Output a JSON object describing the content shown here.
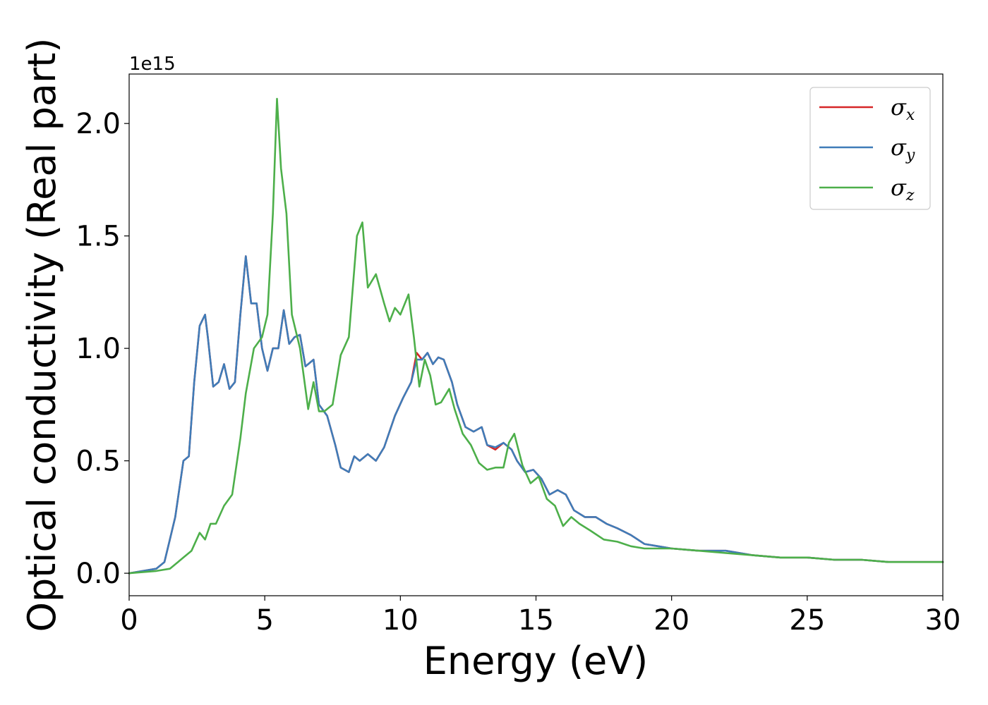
{
  "chart_data": {
    "type": "line",
    "xlabel": "Energy (eV)",
    "ylabel": "Optical conductivity (Real part)",
    "y_offset_text": "1e15",
    "xlim": [
      0,
      30
    ],
    "ylim": [
      -0.1,
      2.22
    ],
    "xticks": [
      0,
      5,
      10,
      15,
      20,
      25,
      30
    ],
    "xtick_labels": [
      "0",
      "5",
      "10",
      "15",
      "20",
      "25",
      "30"
    ],
    "yticks": [
      0.0,
      0.5,
      1.0,
      1.5,
      2.0
    ],
    "ytick_labels": [
      "0.0",
      "0.5",
      "1.0",
      "1.5",
      "2.0"
    ],
    "grid": false,
    "legend_position": "top-right",
    "series": [
      {
        "name": "σx",
        "legend_base": "σ",
        "legend_sub": "x",
        "color": "#d62728",
        "x": [
          0,
          1,
          1.3,
          1.5,
          1.7,
          2.0,
          2.2,
          2.4,
          2.6,
          2.8,
          2.9,
          3.1,
          3.3,
          3.5,
          3.7,
          3.9,
          4.1,
          4.3,
          4.5,
          4.7,
          4.9,
          5.1,
          5.3,
          5.5,
          5.7,
          5.9,
          6.1,
          6.3,
          6.5,
          6.8,
          7.0,
          7.3,
          7.6,
          7.8,
          8.1,
          8.3,
          8.5,
          8.8,
          9.1,
          9.4,
          9.8,
          10.1,
          10.4,
          10.6,
          10.8,
          11.0,
          11.2,
          11.4,
          11.6,
          11.9,
          12.1,
          12.4,
          12.7,
          13.0,
          13.2,
          13.5,
          13.8,
          14.1,
          14.3,
          14.6,
          14.9,
          15.2,
          15.5,
          15.8,
          16.1,
          16.4,
          16.8,
          17.2,
          17.6,
          18.0,
          18.5,
          19.0,
          19.5,
          20.0,
          21.0,
          22.0,
          23.0,
          24.0,
          25.0,
          26.0,
          27.0,
          28.0,
          29.0,
          30.0
        ],
        "y": [
          0.0,
          0.02,
          0.05,
          0.15,
          0.25,
          0.5,
          0.52,
          0.85,
          1.1,
          1.15,
          1.05,
          0.83,
          0.85,
          0.93,
          0.82,
          0.85,
          1.15,
          1.41,
          1.2,
          1.2,
          1.0,
          0.9,
          1.0,
          1.0,
          1.17,
          1.02,
          1.05,
          1.06,
          0.92,
          0.95,
          0.75,
          0.7,
          0.57,
          0.47,
          0.45,
          0.52,
          0.5,
          0.53,
          0.5,
          0.56,
          0.7,
          0.78,
          0.85,
          0.98,
          0.95,
          0.98,
          0.93,
          0.96,
          0.95,
          0.85,
          0.75,
          0.65,
          0.63,
          0.65,
          0.57,
          0.55,
          0.58,
          0.55,
          0.5,
          0.45,
          0.46,
          0.42,
          0.35,
          0.37,
          0.35,
          0.28,
          0.25,
          0.25,
          0.22,
          0.2,
          0.17,
          0.13,
          0.12,
          0.11,
          0.1,
          0.1,
          0.08,
          0.07,
          0.07,
          0.06,
          0.06,
          0.05,
          0.05,
          0.05
        ]
      },
      {
        "name": "σy",
        "legend_base": "σ",
        "legend_sub": "y",
        "color": "#3f7cb8",
        "x": [
          0,
          1,
          1.3,
          1.5,
          1.7,
          2.0,
          2.2,
          2.4,
          2.6,
          2.8,
          2.9,
          3.1,
          3.3,
          3.5,
          3.7,
          3.9,
          4.1,
          4.3,
          4.5,
          4.7,
          4.9,
          5.1,
          5.3,
          5.5,
          5.7,
          5.9,
          6.1,
          6.3,
          6.5,
          6.8,
          7.0,
          7.3,
          7.6,
          7.8,
          8.1,
          8.3,
          8.5,
          8.8,
          9.1,
          9.4,
          9.8,
          10.1,
          10.4,
          10.6,
          10.8,
          11.0,
          11.2,
          11.4,
          11.6,
          11.9,
          12.1,
          12.4,
          12.7,
          13.0,
          13.2,
          13.5,
          13.8,
          14.1,
          14.3,
          14.6,
          14.9,
          15.2,
          15.5,
          15.8,
          16.1,
          16.4,
          16.8,
          17.2,
          17.6,
          18.0,
          18.5,
          19.0,
          19.5,
          20.0,
          21.0,
          22.0,
          23.0,
          24.0,
          25.0,
          26.0,
          27.0,
          28.0,
          29.0,
          30.0
        ],
        "y": [
          0.0,
          0.02,
          0.05,
          0.15,
          0.25,
          0.5,
          0.52,
          0.85,
          1.1,
          1.15,
          1.05,
          0.83,
          0.85,
          0.93,
          0.82,
          0.85,
          1.15,
          1.41,
          1.2,
          1.2,
          1.0,
          0.9,
          1.0,
          1.0,
          1.17,
          1.02,
          1.05,
          1.06,
          0.92,
          0.95,
          0.75,
          0.7,
          0.57,
          0.47,
          0.45,
          0.52,
          0.5,
          0.53,
          0.5,
          0.56,
          0.7,
          0.78,
          0.85,
          0.95,
          0.95,
          0.98,
          0.93,
          0.96,
          0.95,
          0.85,
          0.75,
          0.65,
          0.63,
          0.65,
          0.57,
          0.56,
          0.58,
          0.55,
          0.5,
          0.45,
          0.46,
          0.42,
          0.35,
          0.37,
          0.35,
          0.28,
          0.25,
          0.25,
          0.22,
          0.2,
          0.17,
          0.13,
          0.12,
          0.11,
          0.1,
          0.1,
          0.08,
          0.07,
          0.07,
          0.06,
          0.06,
          0.05,
          0.05,
          0.05
        ]
      },
      {
        "name": "σz",
        "legend_base": "σ",
        "legend_sub": "z",
        "color": "#4daf4a",
        "x": [
          0,
          1,
          1.5,
          1.8,
          2.0,
          2.3,
          2.6,
          2.8,
          3.0,
          3.2,
          3.5,
          3.8,
          4.1,
          4.3,
          4.6,
          4.9,
          5.1,
          5.3,
          5.45,
          5.6,
          5.8,
          6.0,
          6.3,
          6.6,
          6.8,
          7.0,
          7.2,
          7.5,
          7.8,
          8.1,
          8.4,
          8.6,
          8.8,
          9.1,
          9.4,
          9.6,
          9.8,
          10.0,
          10.3,
          10.5,
          10.7,
          10.9,
          11.1,
          11.3,
          11.5,
          11.8,
          12.0,
          12.3,
          12.6,
          12.9,
          13.2,
          13.5,
          13.8,
          14.0,
          14.2,
          14.5,
          14.8,
          15.1,
          15.4,
          15.7,
          16.0,
          16.3,
          16.6,
          17.0,
          17.5,
          18.0,
          18.5,
          19.0,
          20.0,
          21.0,
          22.0,
          23.0,
          24.0,
          25.0,
          26.0,
          27.0,
          28.0,
          29.0,
          30.0
        ],
        "y": [
          0.0,
          0.01,
          0.02,
          0.05,
          0.07,
          0.1,
          0.18,
          0.15,
          0.22,
          0.22,
          0.3,
          0.35,
          0.6,
          0.8,
          1.0,
          1.05,
          1.15,
          1.6,
          2.11,
          1.8,
          1.6,
          1.15,
          1.0,
          0.73,
          0.85,
          0.72,
          0.72,
          0.75,
          0.97,
          1.05,
          1.5,
          1.56,
          1.27,
          1.33,
          1.2,
          1.12,
          1.18,
          1.15,
          1.24,
          1.05,
          0.83,
          0.95,
          0.88,
          0.75,
          0.76,
          0.82,
          0.73,
          0.62,
          0.57,
          0.49,
          0.46,
          0.47,
          0.47,
          0.58,
          0.62,
          0.48,
          0.4,
          0.43,
          0.33,
          0.3,
          0.21,
          0.25,
          0.22,
          0.19,
          0.15,
          0.14,
          0.12,
          0.11,
          0.11,
          0.1,
          0.09,
          0.08,
          0.07,
          0.07,
          0.06,
          0.06,
          0.05,
          0.05,
          0.05
        ]
      }
    ]
  }
}
